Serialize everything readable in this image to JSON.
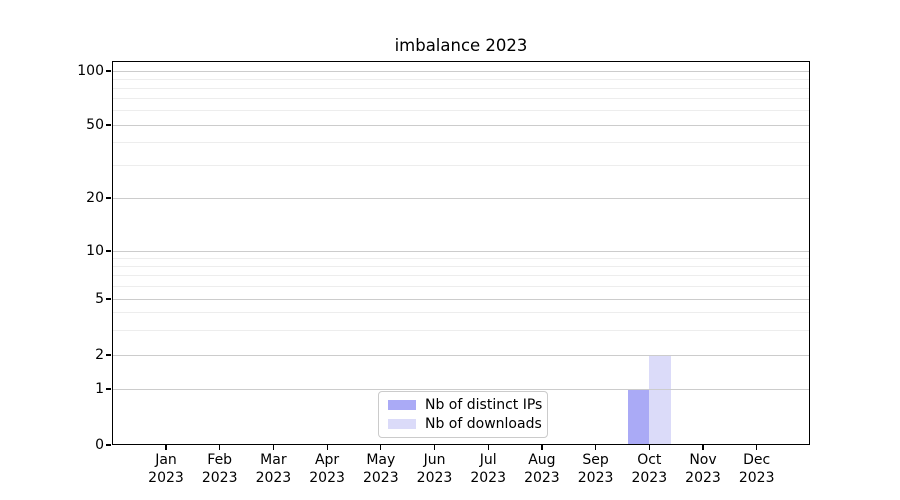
{
  "chart_data": {
    "type": "bar",
    "title": "imbalance 2023",
    "categories": [
      "Jan",
      "Feb",
      "Mar",
      "Apr",
      "May",
      "Jun",
      "Jul",
      "Aug",
      "Sep",
      "Oct",
      "Nov",
      "Dec"
    ],
    "x_year": "2023",
    "series": [
      {
        "name": "Nb of distinct IPs",
        "color": "#aaaaf6",
        "values": [
          0,
          0,
          0,
          0,
          0,
          0,
          0,
          0,
          0,
          1,
          0,
          0
        ]
      },
      {
        "name": "Nb of downloads",
        "color": "#dbdbf9",
        "values": [
          0,
          0,
          0,
          0,
          0,
          0,
          0,
          0,
          0,
          2,
          0,
          0
        ]
      }
    ],
    "y_axis": {
      "scale": "symlog",
      "tick_values": [
        0,
        1,
        2,
        5,
        10,
        20,
        50,
        100
      ],
      "minor_gridline_values": [
        3,
        4,
        6,
        7,
        8,
        9,
        30,
        40,
        60,
        70,
        80,
        90
      ],
      "ylim": [
        0,
        115
      ]
    },
    "legend": {
      "position": "lower center"
    },
    "grid": true,
    "colors": {
      "major_gridline": "#cccccc",
      "minor_gridline": "#ededed",
      "axis": "#000000",
      "background": "#ffffff"
    }
  }
}
